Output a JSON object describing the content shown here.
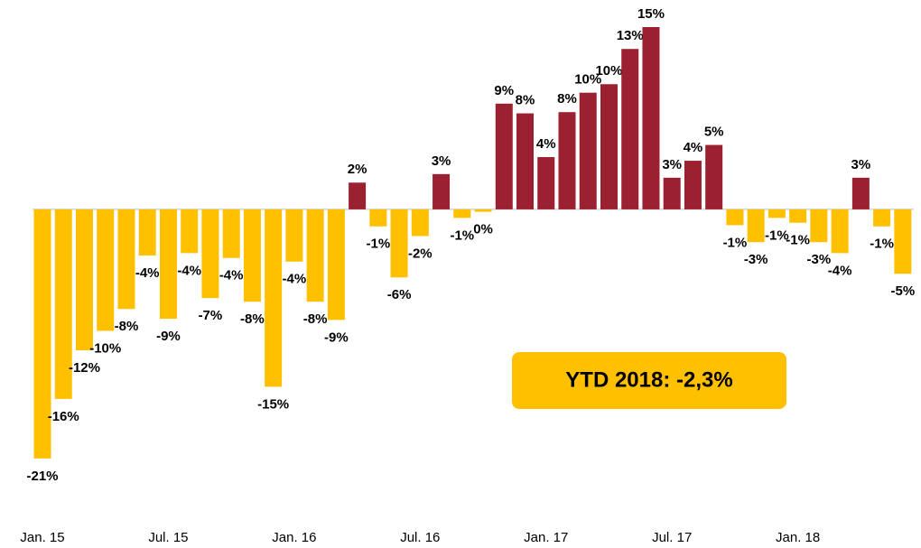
{
  "chart_data": {
    "type": "bar",
    "categories": [
      "Jan. 15",
      null,
      null,
      null,
      null,
      null,
      "Jul. 15",
      null,
      null,
      null,
      null,
      null,
      "Jan. 16",
      null,
      null,
      null,
      null,
      null,
      "Jul. 16",
      null,
      null,
      null,
      null,
      null,
      "Jan. 17",
      null,
      null,
      null,
      null,
      null,
      "Jul. 17",
      null,
      null,
      null,
      null,
      null,
      "Jan. 18",
      null,
      null,
      null,
      null,
      null
    ],
    "values": [
      -20.5,
      -15.6,
      -11.6,
      -10.0,
      -8.2,
      -3.8,
      -9.0,
      -3.6,
      -7.3,
      -4.0,
      -7.6,
      -14.6,
      -4.3,
      -7.6,
      -9.1,
      2.2,
      -1.4,
      -5.6,
      -2.2,
      2.9,
      -0.7,
      -0.2,
      8.7,
      7.9,
      4.3,
      8.0,
      9.6,
      10.3,
      13.2,
      15.0,
      2.6,
      4.0,
      5.3,
      -1.3,
      -2.7,
      -0.7,
      -1.1,
      -2.7,
      -3.6,
      2.6,
      -1.4,
      -5.3
    ],
    "value_labels": [
      "-21%",
      "-16%",
      "-12%",
      "-10%",
      "-8%",
      "-4%",
      "-9%",
      "-4%",
      "-7%",
      "-4%",
      "-8%",
      "-15%",
      "-4%",
      "-8%",
      "-9%",
      "2%",
      "-1%",
      "-6%",
      "-2%",
      "3%",
      "-1%",
      "0%",
      "9%",
      "8%",
      "4%",
      "8%",
      "10%",
      "10%",
      "13%",
      "15%",
      "3%",
      "4%",
      "5%",
      "-1%",
      "-3%",
      "-1%",
      "-1%",
      "-3%",
      "-4%",
      "3%",
      "-1%",
      "-5%"
    ],
    "positive_color": "#9b2030",
    "negative_color": "#ffc000",
    "ylim": [
      -22,
      15
    ],
    "annotation": "YTD 2018: -2,3%"
  }
}
